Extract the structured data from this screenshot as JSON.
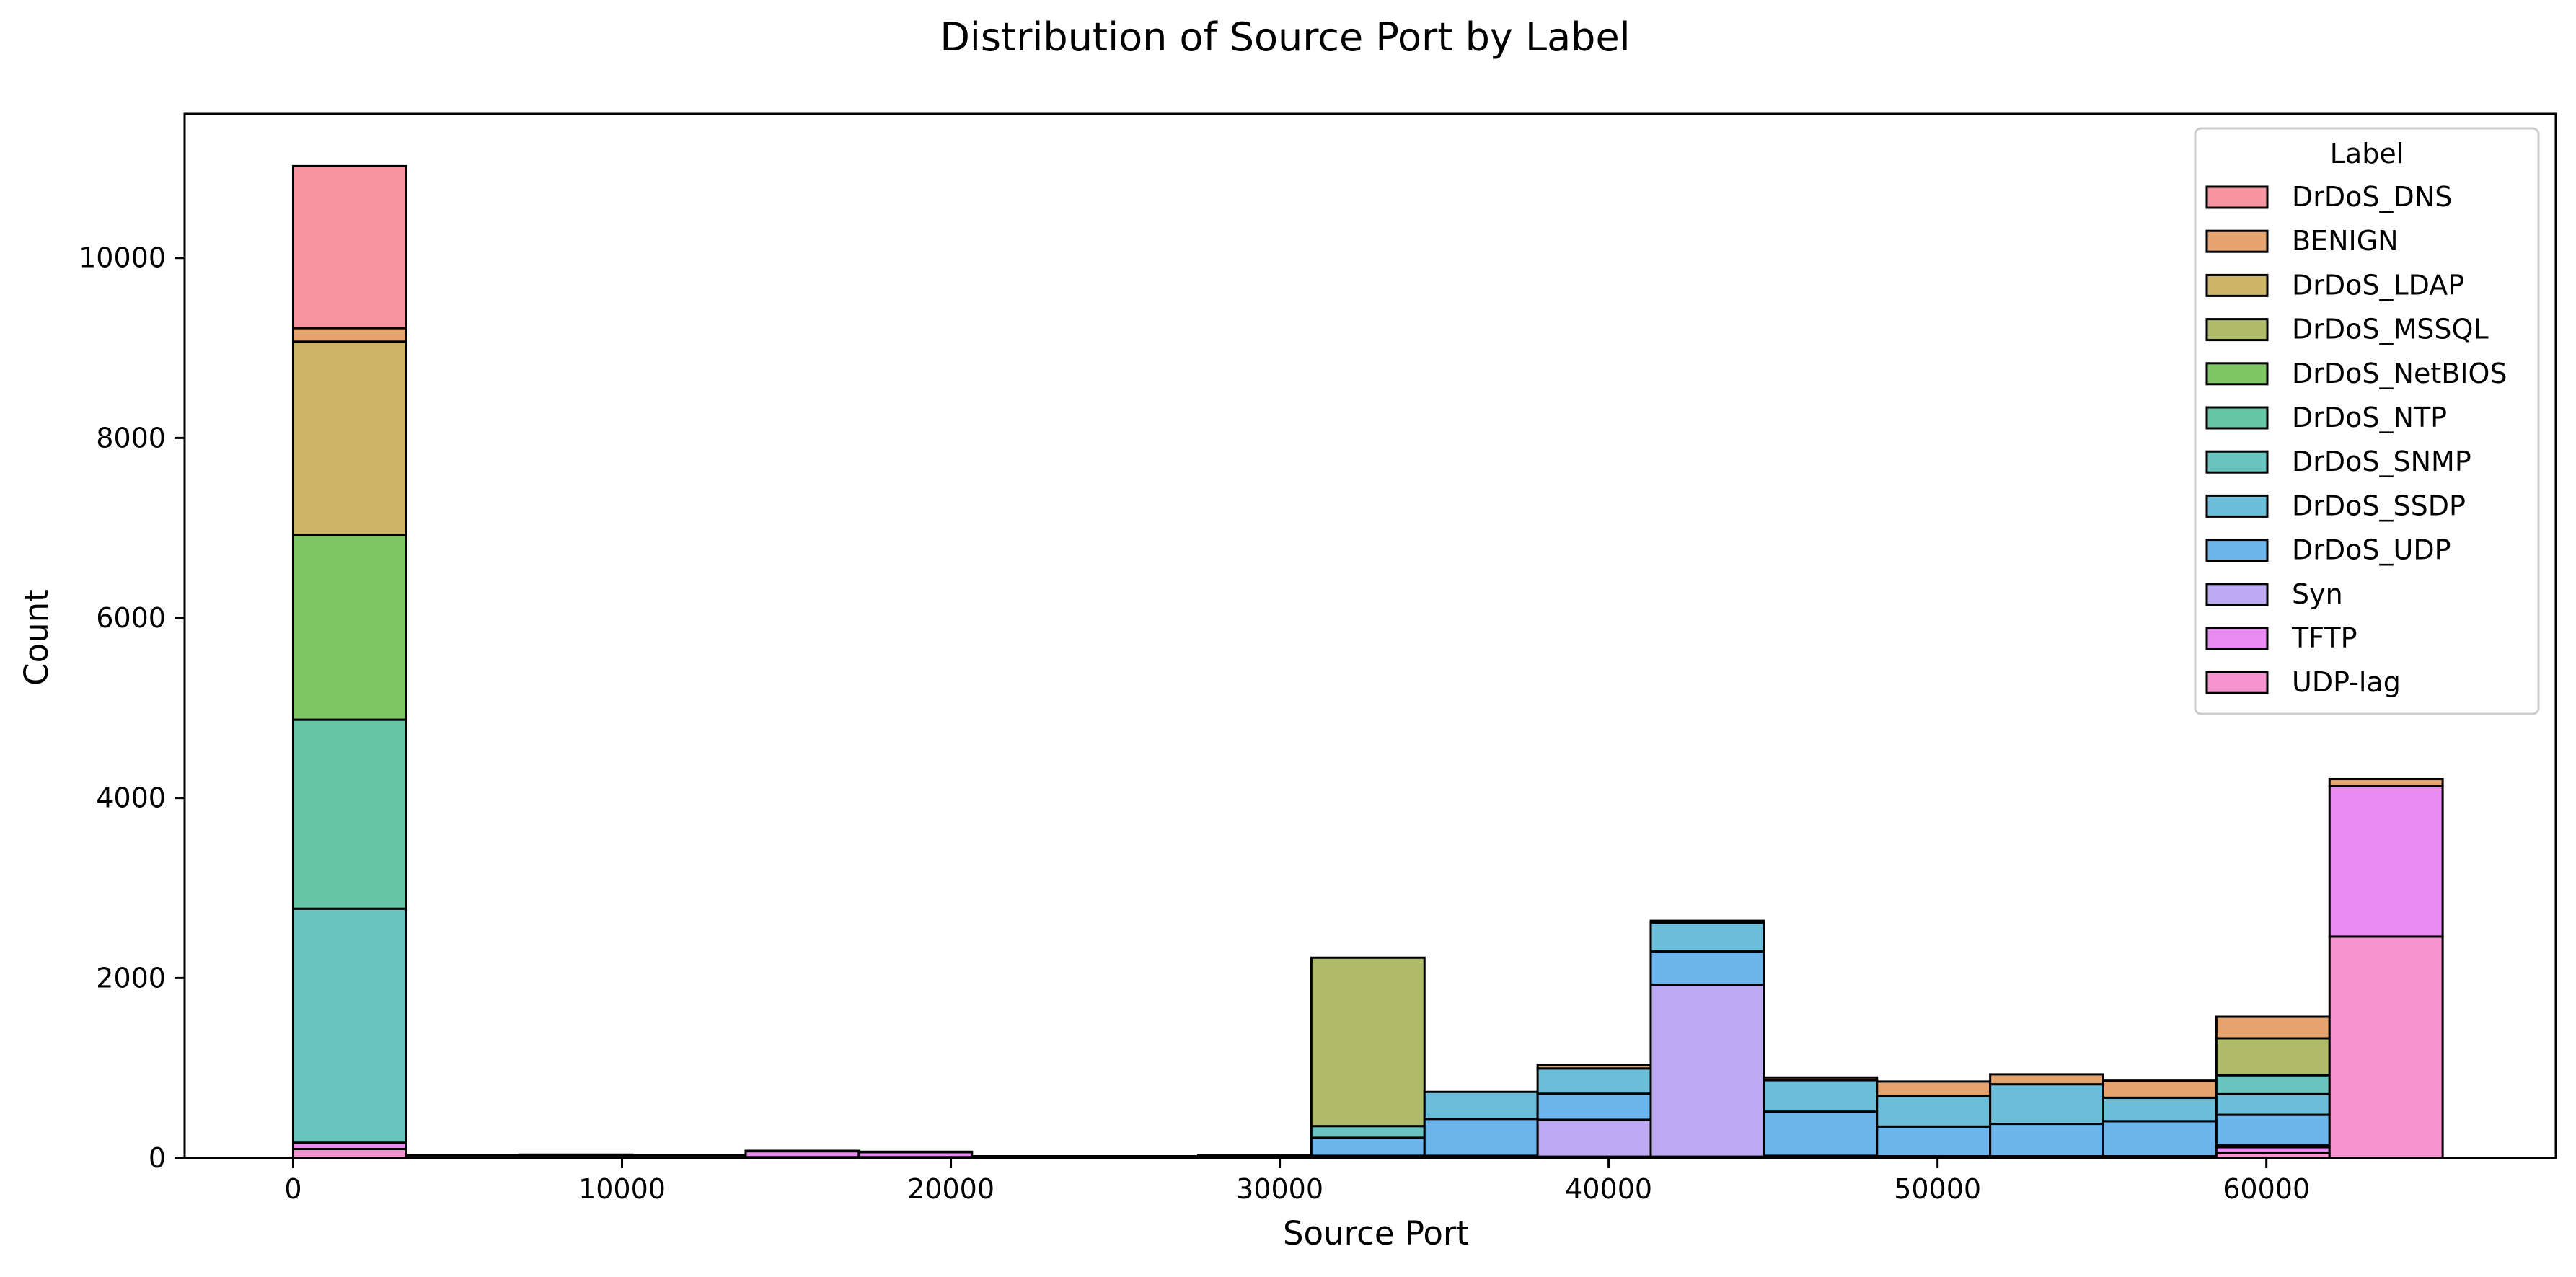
{
  "chart_data": {
    "type": "bar",
    "title": "Distribution of  Source Port by Label",
    "xlabel": "Source Port",
    "ylabel": "Count",
    "stacked": true,
    "xlim": [
      -3300,
      68800
    ],
    "ylim": [
      0,
      11600
    ],
    "x_ticks": [
      0,
      10000,
      20000,
      30000,
      40000,
      50000,
      60000
    ],
    "x_tick_labels": [
      "0",
      "10000",
      "20000",
      "30000",
      "40000",
      "50000",
      "60000"
    ],
    "y_ticks": [
      0,
      2000,
      4000,
      6000,
      8000,
      10000
    ],
    "y_tick_labels": [
      "0",
      "2000",
      "4000",
      "6000",
      "8000",
      "10000"
    ],
    "grid": false,
    "legend": {
      "title": "Label",
      "placement": "top-right"
    },
    "bin_edges": [
      0,
      3440,
      6880,
      10320,
      13760,
      17200,
      20640,
      24080,
      27520,
      30960,
      34400,
      37840,
      41280,
      44720,
      48160,
      51600,
      55040,
      58480,
      61920,
      65360
    ],
    "series": [
      {
        "name": "DrDoS_DNS",
        "color": "#f7929f",
        "values": [
          1800,
          0,
          0,
          0,
          0,
          0,
          0,
          0,
          0,
          0,
          0,
          0,
          0,
          0,
          0,
          0,
          0,
          0,
          0
        ]
      },
      {
        "name": "BENIGN",
        "color": "#e5a36d",
        "values": [
          150,
          5,
          8,
          5,
          5,
          5,
          5,
          5,
          5,
          0,
          0,
          40,
          20,
          30,
          160,
          110,
          190,
          240,
          80
        ]
      },
      {
        "name": "DrDoS_LDAP",
        "color": "#cbb466",
        "values": [
          2150,
          0,
          0,
          0,
          0,
          0,
          0,
          0,
          0,
          0,
          0,
          0,
          0,
          0,
          0,
          0,
          0,
          0,
          0
        ]
      },
      {
        "name": "DrDoS_MSSQL",
        "color": "#b0bb6a",
        "values": [
          0,
          0,
          0,
          0,
          0,
          0,
          0,
          0,
          0,
          1870,
          0,
          0,
          0,
          0,
          0,
          0,
          0,
          410,
          0
        ]
      },
      {
        "name": "DrDoS_NetBIOS",
        "color": "#7ec664",
        "values": [
          2050,
          0,
          0,
          0,
          0,
          0,
          0,
          0,
          0,
          0,
          0,
          0,
          0,
          0,
          0,
          0,
          0,
          0,
          0
        ]
      },
      {
        "name": "DrDoS_NTP",
        "color": "#65c4a3",
        "values": [
          2100,
          0,
          0,
          0,
          0,
          0,
          0,
          0,
          0,
          0,
          0,
          0,
          0,
          0,
          0,
          0,
          0,
          0,
          0
        ]
      },
      {
        "name": "DrDoS_SNMP",
        "color": "#69c4bf",
        "values": [
          2600,
          0,
          0,
          0,
          0,
          0,
          0,
          0,
          0,
          130,
          0,
          0,
          0,
          0,
          0,
          0,
          0,
          210,
          0
        ]
      },
      {
        "name": "DrDoS_SSDP",
        "color": "#6abed9",
        "values": [
          0,
          0,
          0,
          0,
          0,
          0,
          0,
          0,
          0,
          0,
          300,
          280,
          320,
          350,
          340,
          440,
          260,
          230,
          0
        ]
      },
      {
        "name": "DrDoS_UDP",
        "color": "#6bb5ec",
        "values": [
          0,
          0,
          0,
          0,
          0,
          0,
          0,
          0,
          0,
          200,
          410,
          290,
          370,
          490,
          330,
          360,
          390,
          340,
          0
        ]
      },
      {
        "name": "Syn",
        "color": "#bdaaf2",
        "values": [
          0,
          0,
          0,
          0,
          0,
          0,
          0,
          0,
          0,
          10,
          10,
          410,
          1910,
          10,
          5,
          5,
          5,
          20,
          0
        ]
      },
      {
        "name": "TFTP",
        "color": "#e98af2",
        "values": [
          70,
          25,
          25,
          25,
          65,
          55,
          10,
          10,
          20,
          10,
          10,
          10,
          10,
          10,
          10,
          10,
          10,
          60,
          1670
        ]
      },
      {
        "name": "UDP-lag",
        "color": "#f693d0",
        "values": [
          100,
          5,
          5,
          5,
          10,
          10,
          5,
          5,
          5,
          5,
          5,
          5,
          5,
          5,
          5,
          5,
          5,
          60,
          2460
        ]
      }
    ]
  }
}
